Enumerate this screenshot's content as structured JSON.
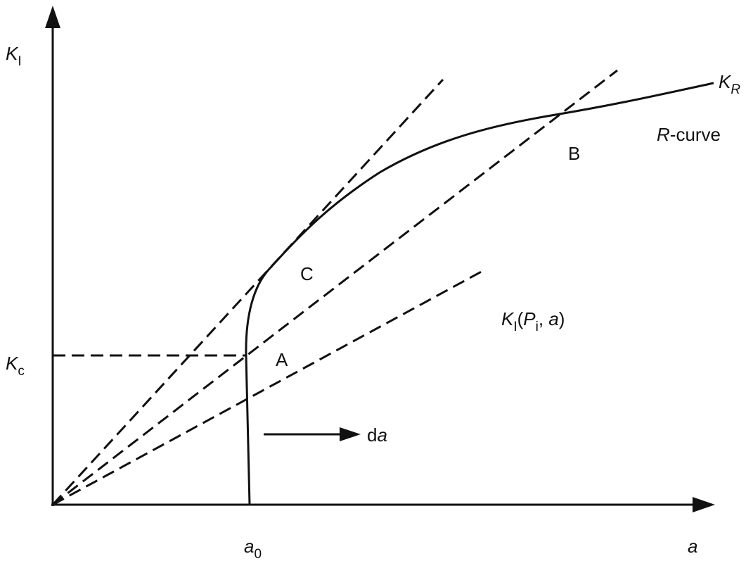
{
  "axes": {
    "y_label": {
      "symbol": "K",
      "subscript": "I"
    },
    "x_label": "a",
    "x_marker": {
      "symbol": "a",
      "subscript": "0"
    },
    "y_marker": {
      "symbol": "K",
      "subscript": "c"
    }
  },
  "curve": {
    "name": {
      "symbol": "K",
      "subscript": "R"
    },
    "label": {
      "italic": "R",
      "rest": "-curve"
    }
  },
  "points": {
    "b": "B",
    "c": "C",
    "a": "A"
  },
  "line_label": {
    "k": "K",
    "k_sub": "I",
    "open": "(",
    "p": "P",
    "p_sub": "i",
    "comma": ", ",
    "a": "a",
    "close": ")"
  },
  "increment": {
    "d": "d",
    "a": "a"
  }
}
